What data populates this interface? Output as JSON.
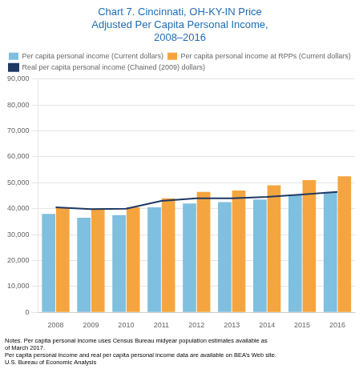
{
  "chart_data": {
    "type": "bar",
    "title": "Chart 7. Cincinnati, OH-KY-IN Price\nAdjusted Per Capita Personal Income,\n2008–2016",
    "title_color": "#1f6db5",
    "categories": [
      "2008",
      "2009",
      "2010",
      "2011",
      "2012",
      "2013",
      "2014",
      "2015",
      "2016"
    ],
    "series": [
      {
        "name": "Per capita personal income (Current dollars)",
        "color": "#7fbfdf",
        "type": "bar",
        "values": [
          38000,
          36500,
          37500,
          40500,
          42000,
          42500,
          43500,
          45500,
          46500
        ]
      },
      {
        "name": "Per capita personal income at RPPs (Current dollars)",
        "color": "#f5a53f",
        "type": "bar",
        "values": [
          40500,
          40000,
          40500,
          44000,
          46500,
          47000,
          49000,
          51000,
          52500
        ]
      },
      {
        "name": "Real per capita personal income (Chained (2009) dollars)",
        "color": "#1f3864",
        "type": "line",
        "values": [
          40500,
          39800,
          40000,
          43000,
          44000,
          44000,
          44500,
          45500,
          46500
        ]
      }
    ],
    "ylim": [
      0,
      90000
    ],
    "yticks": [
      0,
      {
        "value": 10000,
        "label": "10,000"
      },
      {
        "value": 20000,
        "label": "20,000"
      },
      {
        "value": 30000,
        "label": "30,000"
      },
      {
        "value": 40000,
        "label": "40,000"
      },
      {
        "value": 50000,
        "label": "50,000"
      },
      {
        "value": 60000,
        "label": "60,000"
      },
      {
        "value": 70000,
        "label": "70,000"
      },
      {
        "value": 80000,
        "label": "80,000"
      },
      {
        "value": 90000,
        "label": "90,000"
      }
    ],
    "grid": true,
    "legend": "upper left",
    "annotations": [
      "Notes. Per capita personal income uses Census Bureau midyear population estimates available as",
      "of March 2017.",
      "Per capita personal income and real per capita personal income data are available on BEA’s Web site.",
      "U.S. Bureau of Economic Analysis"
    ]
  }
}
